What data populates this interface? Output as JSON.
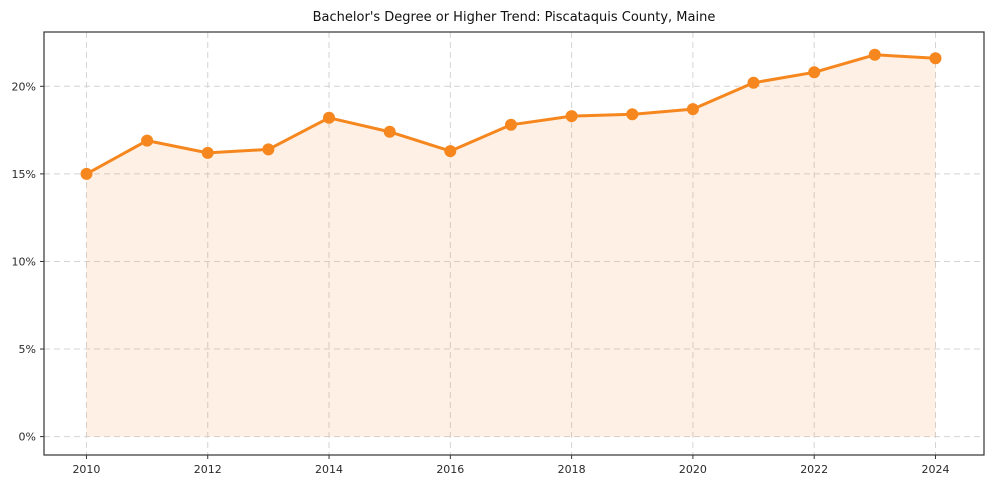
{
  "chart_data": {
    "type": "line",
    "title": "Bachelor's Degree or Higher Trend: Piscataquis County, Maine",
    "series_name": "Bachelor's degree or higher",
    "x": [
      2010,
      2011,
      2012,
      2013,
      2014,
      2015,
      2016,
      2017,
      2018,
      2019,
      2020,
      2021,
      2022,
      2023,
      2024
    ],
    "values": [
      15.0,
      16.9,
      16.2,
      16.4,
      18.2,
      17.4,
      16.3,
      17.8,
      18.3,
      18.4,
      18.7,
      20.2,
      20.8,
      21.8,
      21.6
    ],
    "xticks": [
      2010,
      2012,
      2014,
      2016,
      2018,
      2020,
      2022,
      2024
    ],
    "yticks": [
      0,
      5,
      10,
      15,
      20
    ],
    "ytick_suffix": "%",
    "xlim": [
      2009.3,
      2024.8
    ],
    "ylim": [
      -1.05,
      23.1
    ],
    "grid": true,
    "grid_style": "dashed",
    "legend": false,
    "line_color": "#f6871f",
    "fill_color": "#f6871f",
    "fill_opacity": 0.12,
    "marker_color": "#f6871f",
    "marker_radius": 6,
    "line_width": 3,
    "grid_color": "#d4d4d4",
    "axis_color": "#333333",
    "background_color": "#ffffff"
  }
}
